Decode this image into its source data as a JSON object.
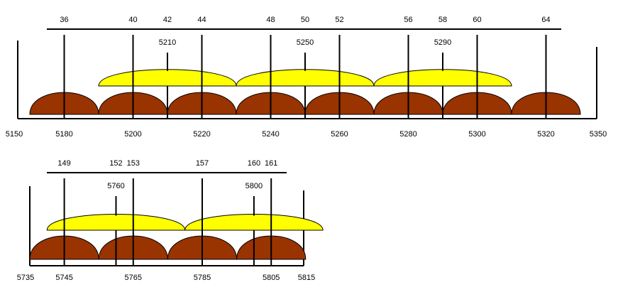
{
  "colors": {
    "channel_20mhz": "#993300",
    "channel_40mhz": "#ffff00",
    "line": "#000000",
    "background": "#ffffff"
  },
  "band_5ghz_lower": {
    "left_edge_label": "5150",
    "right_edge_label": "5350",
    "channels_20mhz": [
      {
        "number": "36",
        "center_mhz": "5180"
      },
      {
        "number": "40",
        "center_mhz": "5200"
      },
      {
        "number": "44",
        "center_mhz": "5220"
      },
      {
        "number": "48",
        "center_mhz": "5240"
      },
      {
        "number": "52",
        "center_mhz": "5260"
      },
      {
        "number": "56",
        "center_mhz": "5280"
      },
      {
        "number": "60",
        "center_mhz": "5300"
      },
      {
        "number": "64",
        "center_mhz": "5320"
      }
    ],
    "channels_40mhz": [
      {
        "number": "42",
        "center_mhz": "5210"
      },
      {
        "number": "50",
        "center_mhz": "5250"
      },
      {
        "number": "58",
        "center_mhz": "5290"
      }
    ]
  },
  "band_5ghz_upper": {
    "left_edge_label": "5735",
    "right_edge_label": "5815",
    "channels_20mhz": [
      {
        "number": "149",
        "center_mhz": "5745"
      },
      {
        "number": "153",
        "center_mhz": "5765"
      },
      {
        "number": "157",
        "center_mhz": "5785"
      },
      {
        "number": "161",
        "center_mhz": "5805"
      }
    ],
    "channels_40mhz": [
      {
        "number": "152",
        "center_mhz": "5760"
      },
      {
        "number": "160",
        "center_mhz": "5800"
      }
    ]
  }
}
